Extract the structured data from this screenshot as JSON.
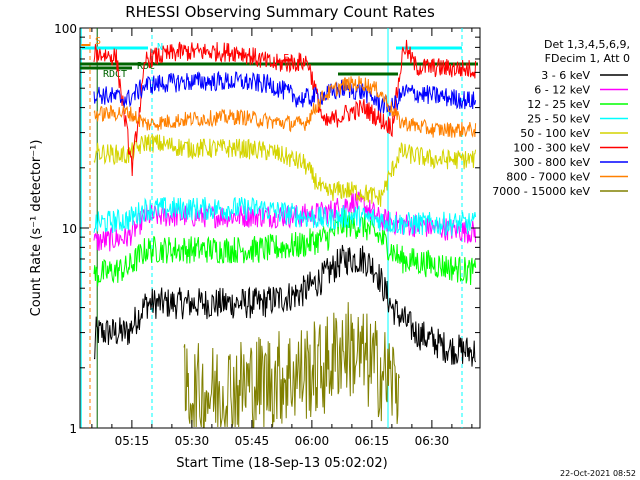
{
  "chart_data": {
    "type": "line",
    "title": "RHESSI Observing Summary Count Rates",
    "xlabel": "Start Time (18-Sep-13 05:02:02)",
    "ylabel": "Count Rate (s⁻¹ detector⁻¹)",
    "y_scale": "log",
    "ylim": [
      1,
      100
    ],
    "y_ticks": [
      "1",
      "10",
      "100"
    ],
    "xlim_minutes": [
      0,
      100
    ],
    "x_ticks": [
      {
        "label": "05:15",
        "minutes": 12.97
      },
      {
        "label": "05:30",
        "minutes": 27.97
      },
      {
        "label": "05:45",
        "minutes": 42.97
      },
      {
        "label": "06:00",
        "minutes": 57.97
      },
      {
        "label": "06:15",
        "minutes": 72.97
      },
      {
        "label": "06:30",
        "minutes": 87.97
      }
    ],
    "timestamp": "22-Oct-2021 08:52",
    "legend": {
      "placement": "right",
      "header": [
        "Det 1,3,4,5,6,9,",
        "FDecim 1, Att 0"
      ],
      "entries": [
        {
          "label": "3 - 6 keV",
          "color": "#000000"
        },
        {
          "label": "6 - 12 keV",
          "color": "#ff00ff"
        },
        {
          "label": "12 - 25 keV",
          "color": "#00ff00"
        },
        {
          "label": "25 - 50 keV",
          "color": "#00ffff"
        },
        {
          "label": "50 - 100 keV",
          "color": "#d4d400"
        },
        {
          "label": "100 - 300 keV",
          "color": "#ff0000"
        },
        {
          "label": "300 - 800 keV",
          "color": "#0000ff"
        },
        {
          "label": "800 - 7000 keV",
          "color": "#ff8000"
        },
        {
          "label": "7000 - 15000 keV",
          "color": "#808000"
        }
      ]
    },
    "flag_labels": [
      {
        "text": "S",
        "color": "#ff8000"
      },
      {
        "text": "N",
        "color": "#00ffff"
      },
      {
        "text": "RDC",
        "color": "#006400"
      },
      {
        "text": "RDCT",
        "color": "#006400"
      },
      {
        "text": "F",
        "color": "#ff0000"
      }
    ],
    "series": [
      {
        "name": "3 - 6 keV",
        "color": "#000000",
        "noise": 0.08,
        "points": [
          [
            3.5,
            2.1
          ],
          [
            4,
            3.0
          ],
          [
            12,
            3.0
          ],
          [
            16.5,
            4.2
          ],
          [
            45,
            4.2
          ],
          [
            55,
            4.7
          ],
          [
            60,
            5.5
          ],
          [
            66,
            7.0
          ],
          [
            71,
            7.0
          ],
          [
            74,
            6.2
          ],
          [
            78,
            4.0
          ],
          [
            84,
            3.0
          ],
          [
            92,
            2.5
          ],
          [
            99,
            2.4
          ]
        ]
      },
      {
        "name": "6 - 12 keV",
        "color": "#ff00ff",
        "noise": 0.06,
        "points": [
          [
            3.5,
            8.5
          ],
          [
            12,
            9.0
          ],
          [
            16.5,
            11.5
          ],
          [
            45,
            11.5
          ],
          [
            55,
            11.5
          ],
          [
            62,
            12.0
          ],
          [
            68,
            13.5
          ],
          [
            71,
            13.0
          ],
          [
            75,
            11.0
          ],
          [
            80,
            10.5
          ],
          [
            90,
            10.0
          ],
          [
            99,
            9.5
          ]
        ]
      },
      {
        "name": "12 - 25 keV",
        "color": "#00ff00",
        "noise": 0.07,
        "points": [
          [
            3.5,
            5.8
          ],
          [
            12,
            6.3
          ],
          [
            16.5,
            7.8
          ],
          [
            45,
            7.8
          ],
          [
            55,
            8.2
          ],
          [
            62,
            9.0
          ],
          [
            66,
            10.5
          ],
          [
            71,
            10.2
          ],
          [
            75,
            9.0
          ],
          [
            80,
            7.0
          ],
          [
            90,
            6.5
          ],
          [
            99,
            6.0
          ]
        ]
      },
      {
        "name": "25 - 50 keV",
        "color": "#00ffff",
        "noise": 0.06,
        "points": [
          [
            3.5,
            10.5
          ],
          [
            12,
            11.0
          ],
          [
            16.5,
            12.5
          ],
          [
            45,
            12.5
          ],
          [
            55,
            11.5
          ],
          [
            62,
            11.0
          ],
          [
            68,
            11.5
          ],
          [
            75,
            11.0
          ],
          [
            80,
            10.5
          ],
          [
            90,
            10.5
          ],
          [
            99,
            10.5
          ]
        ]
      },
      {
        "name": "50 - 100 keV",
        "color": "#d4d400",
        "noise": 0.05,
        "points": [
          [
            3.5,
            24
          ],
          [
            12,
            23
          ],
          [
            16.5,
            27
          ],
          [
            27,
            25
          ],
          [
            40,
            25
          ],
          [
            48,
            24
          ],
          [
            56,
            21
          ],
          [
            61,
            15
          ],
          [
            66,
            15.5
          ],
          [
            71,
            15
          ],
          [
            75,
            14
          ],
          [
            80,
            24
          ],
          [
            88,
            22
          ],
          [
            99,
            22
          ]
        ]
      },
      {
        "name": "100 - 300 keV",
        "color": "#ff0000",
        "noise": 0.05,
        "points": [
          [
            3.5,
            75
          ],
          [
            9,
            72
          ],
          [
            13,
            20
          ],
          [
            16.5,
            70
          ],
          [
            25,
            76
          ],
          [
            40,
            76
          ],
          [
            48,
            66
          ],
          [
            57,
            68
          ],
          [
            61,
            33
          ],
          [
            66,
            37
          ],
          [
            71,
            40
          ],
          [
            75,
            35
          ],
          [
            78,
            32
          ],
          [
            81,
            82
          ],
          [
            84,
            64
          ],
          [
            99,
            62
          ]
        ]
      },
      {
        "name": "300 - 800 keV",
        "color": "#0000ff",
        "noise": 0.05,
        "points": [
          [
            3.5,
            47
          ],
          [
            12,
            44
          ],
          [
            16.5,
            52
          ],
          [
            27,
            54
          ],
          [
            40,
            54
          ],
          [
            48,
            52
          ],
          [
            55,
            44
          ],
          [
            61,
            46
          ],
          [
            66,
            50
          ],
          [
            71,
            48
          ],
          [
            75,
            42
          ],
          [
            78,
            40
          ],
          [
            81,
            48
          ],
          [
            88,
            46
          ],
          [
            99,
            43
          ]
        ]
      },
      {
        "name": "800 - 7000 keV",
        "color": "#ff8000",
        "noise": 0.04,
        "points": [
          [
            3.5,
            37
          ],
          [
            12,
            38
          ],
          [
            16.5,
            33
          ],
          [
            27,
            35
          ],
          [
            40,
            36
          ],
          [
            48,
            34
          ],
          [
            56,
            33
          ],
          [
            61,
            46
          ],
          [
            66,
            52
          ],
          [
            71,
            53
          ],
          [
            75,
            48
          ],
          [
            80,
            34
          ],
          [
            88,
            31
          ],
          [
            99,
            31
          ]
        ]
      },
      {
        "name": "7000 - 15000 keV",
        "color": "#808000",
        "noise": 0.25,
        "points": [
          [
            26,
            1.5
          ],
          [
            33,
            1.5
          ],
          [
            61,
            2.0
          ],
          [
            66,
            2.6
          ],
          [
            71,
            2.2
          ],
          [
            74,
            2.0
          ],
          [
            80,
            1.6
          ]
        ]
      }
    ]
  }
}
